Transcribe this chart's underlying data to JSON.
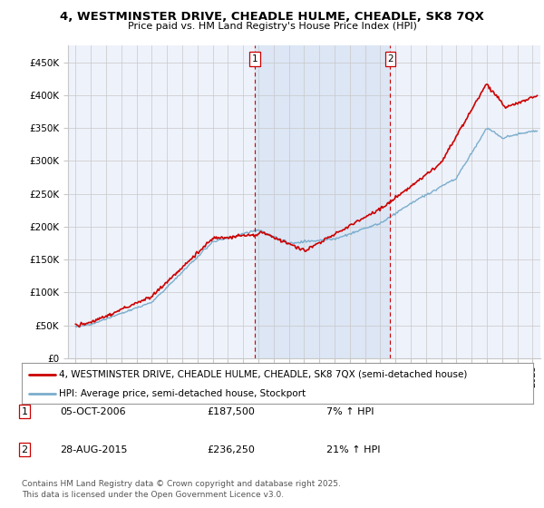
{
  "title": "4, WESTMINSTER DRIVE, CHEADLE HULME, CHEADLE, SK8 7QX",
  "subtitle": "Price paid vs. HM Land Registry's House Price Index (HPI)",
  "legend_line1": "4, WESTMINSTER DRIVE, CHEADLE HULME, CHEADLE, SK8 7QX (semi-detached house)",
  "legend_line2": "HPI: Average price, semi-detached house, Stockport",
  "footnote": "Contains HM Land Registry data © Crown copyright and database right 2025.\nThis data is licensed under the Open Government Licence v3.0.",
  "sale1_date": "05-OCT-2006",
  "sale1_price": "£187,500",
  "sale1_hpi": "7% ↑ HPI",
  "sale2_date": "28-AUG-2015",
  "sale2_price": "£236,250",
  "sale2_hpi": "21% ↑ HPI",
  "sale1_x": 2006.76,
  "sale2_x": 2015.66,
  "xlim": [
    1994.5,
    2025.5
  ],
  "ylim": [
    0,
    475000
  ],
  "yticks": [
    0,
    50000,
    100000,
    150000,
    200000,
    250000,
    300000,
    350000,
    400000,
    450000
  ],
  "ytick_labels": [
    "£0",
    "£50K",
    "£100K",
    "£150K",
    "£200K",
    "£250K",
    "£300K",
    "£350K",
    "£400K",
    "£450K"
  ],
  "background_color": "#eef2fb",
  "line_color_red": "#cc0000",
  "line_color_blue": "#7aadcc",
  "vline_color": "#cc0000",
  "shade_color": "#dce6f5",
  "grid_color": "#c8c8c8",
  "title_fontsize": 9.5,
  "subtitle_fontsize": 8.0,
  "tick_fontsize": 7.5,
  "legend_fontsize": 7.5,
  "ann_fontsize": 8.0,
  "footnote_fontsize": 6.5
}
